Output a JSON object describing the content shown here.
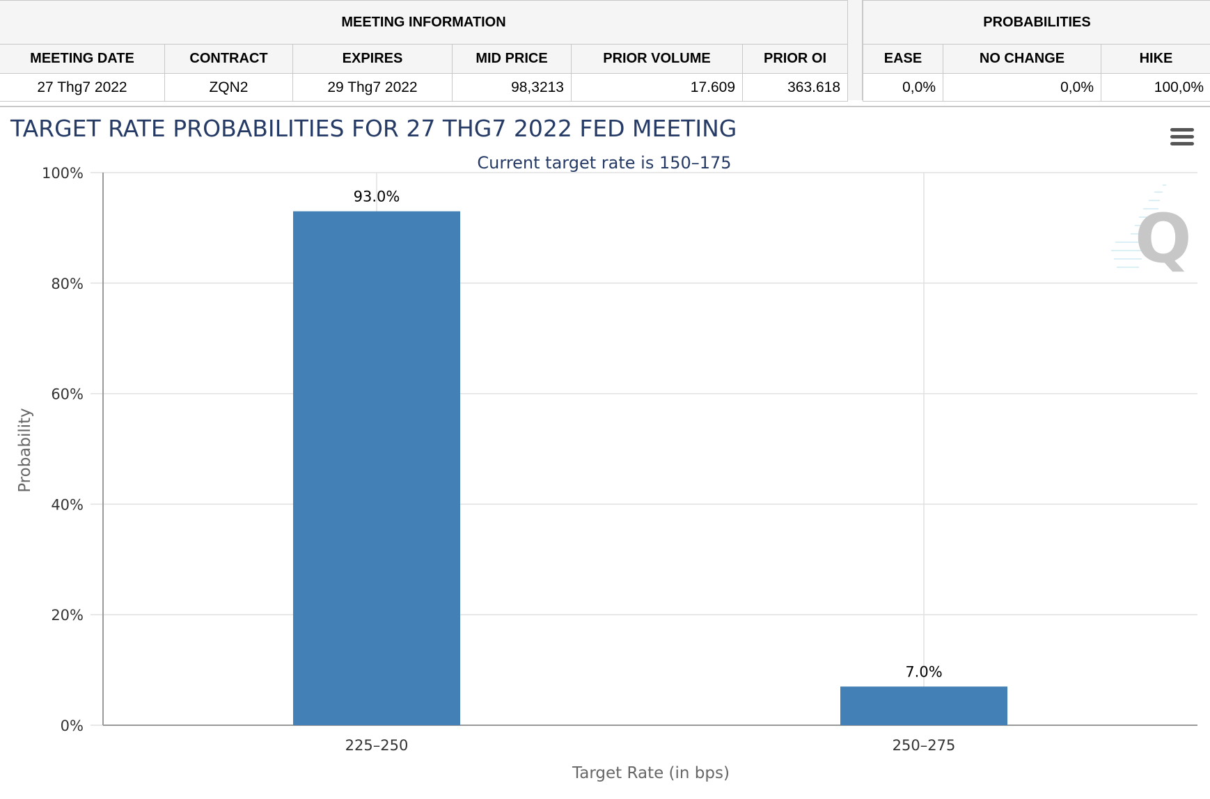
{
  "meeting_info": {
    "title": "MEETING INFORMATION",
    "columns": [
      "MEETING DATE",
      "CONTRACT",
      "EXPIRES",
      "MID PRICE",
      "PRIOR VOLUME",
      "PRIOR OI"
    ],
    "row": [
      "27 Thg7 2022",
      "ZQN2",
      "29 Thg7 2022",
      "98,3213",
      "17.609",
      "363.618"
    ]
  },
  "probabilities": {
    "title": "PROBABILITIES",
    "columns": [
      "EASE",
      "NO CHANGE",
      "HIKE"
    ],
    "row": [
      "0,0%",
      "0,0%",
      "100,0%"
    ]
  },
  "icons": {
    "menu": "hamburger-menu-icon",
    "watermark": "q-logo-watermark"
  },
  "colors": {
    "bar": "#4380b5",
    "title": "#253a64",
    "grid": "#e0e0e0",
    "axis": "#999999"
  },
  "chart_data": {
    "type": "bar",
    "title": "TARGET RATE PROBABILITIES FOR 27 THG7 2022 FED MEETING",
    "subtitle": "Current target rate is 150–175",
    "xlabel": "Target Rate (in bps)",
    "ylabel": "Probability",
    "categories": [
      "225–250",
      "250–275"
    ],
    "values": [
      93.0,
      7.0
    ],
    "data_labels": [
      "93.0%",
      "7.0%"
    ],
    "ylim": [
      0,
      100
    ],
    "yticks": [
      0,
      20,
      40,
      60,
      80,
      100
    ],
    "ytick_labels": [
      "0%",
      "20%",
      "40%",
      "60%",
      "80%",
      "100%"
    ],
    "grid": true,
    "legend": "none"
  }
}
